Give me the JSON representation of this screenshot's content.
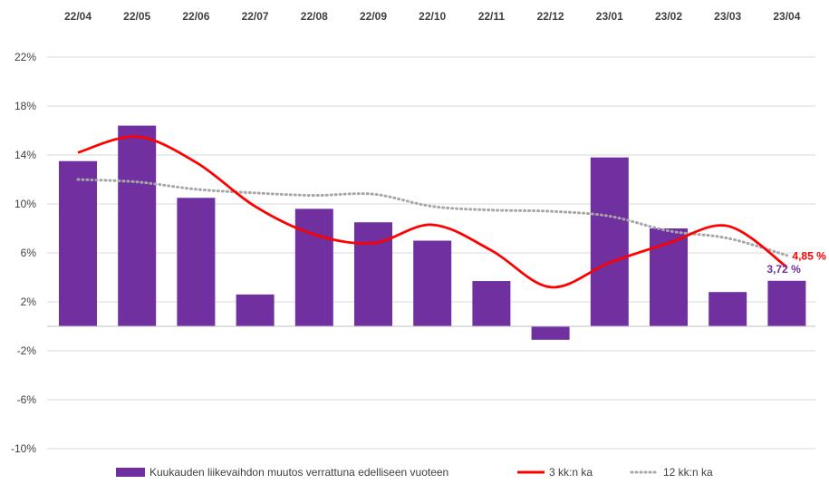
{
  "chart_data": {
    "type": "bar",
    "categories": [
      "22/04",
      "22/05",
      "22/06",
      "22/07",
      "22/08",
      "22/09",
      "22/10",
      "22/11",
      "22/12",
      "23/01",
      "23/02",
      "23/03",
      "23/04"
    ],
    "ylim": [
      -10,
      22
    ],
    "yticks": [
      22,
      18,
      14,
      10,
      6,
      2,
      -2,
      -6,
      -10
    ],
    "ytick_labels": [
      "22%",
      "18%",
      "14%",
      "10%",
      "6%",
      "2%",
      "-2%",
      "-6%",
      "-10%"
    ],
    "grid": true,
    "legend_position": "bottom",
    "series": [
      {
        "name": "Kuukauden liikevaihdon muutos verrattuna edelliseen vuoteen",
        "kind": "bar",
        "color": "#7030a0",
        "values": [
          13.5,
          16.4,
          10.5,
          2.6,
          9.6,
          8.5,
          7.0,
          3.7,
          -1.1,
          13.8,
          8.0,
          2.8,
          3.72
        ]
      },
      {
        "name": "3 kk:n ka",
        "kind": "line",
        "style": "solid-smooth",
        "color": "#ff0000",
        "values": [
          14.2,
          15.5,
          13.4,
          9.8,
          7.5,
          6.8,
          8.3,
          6.2,
          3.2,
          5.2,
          6.8,
          8.2,
          4.85
        ]
      },
      {
        "name": "12 kk:n ka",
        "kind": "line",
        "style": "dotted",
        "color": "#a6a6a6",
        "values": [
          12.0,
          11.8,
          11.2,
          10.9,
          10.7,
          10.8,
          9.8,
          9.5,
          9.4,
          9.0,
          7.8,
          7.2,
          5.8
        ]
      }
    ],
    "annotations": [
      {
        "text": "4,85 %",
        "series": "3 kk:n ka",
        "index": 12,
        "color": "#ff0000"
      },
      {
        "text": "3,72 %",
        "series": "Kuukauden liikevaihdon muutos verrattuna edelliseen vuoteen",
        "index": 12,
        "color": "#7030a0"
      }
    ]
  }
}
